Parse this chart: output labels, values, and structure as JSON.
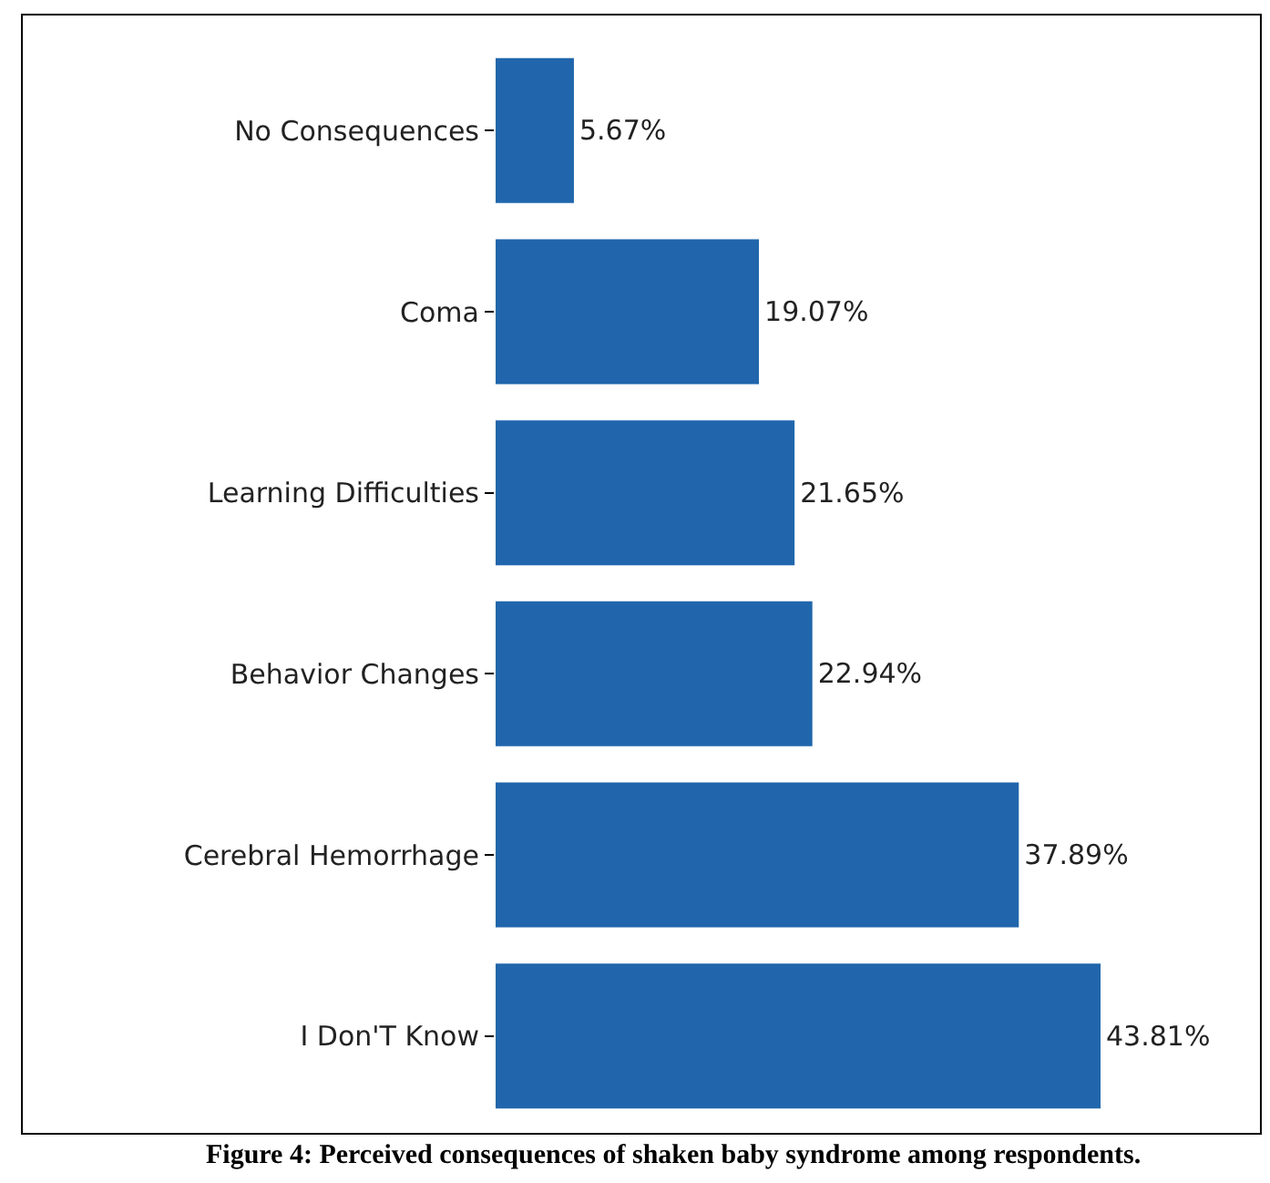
{
  "chart_data": {
    "type": "bar",
    "orientation": "horizontal",
    "categories": [
      "No Consequences",
      "Coma",
      "Learning Difficulties",
      "Behavior Changes",
      "Cerebral Hemorrhage",
      "I Don'T Know"
    ],
    "values": [
      5.67,
      19.07,
      21.65,
      22.94,
      37.89,
      43.81
    ],
    "value_labels": [
      "5.67%",
      "19.07%",
      "21.65%",
      "22.94%",
      "37.89%",
      "43.81%"
    ],
    "color": "#2166ac",
    "annotations": [
      "Figure 4: Perceived consequences of shaken baby syndrome among respondents."
    ]
  }
}
